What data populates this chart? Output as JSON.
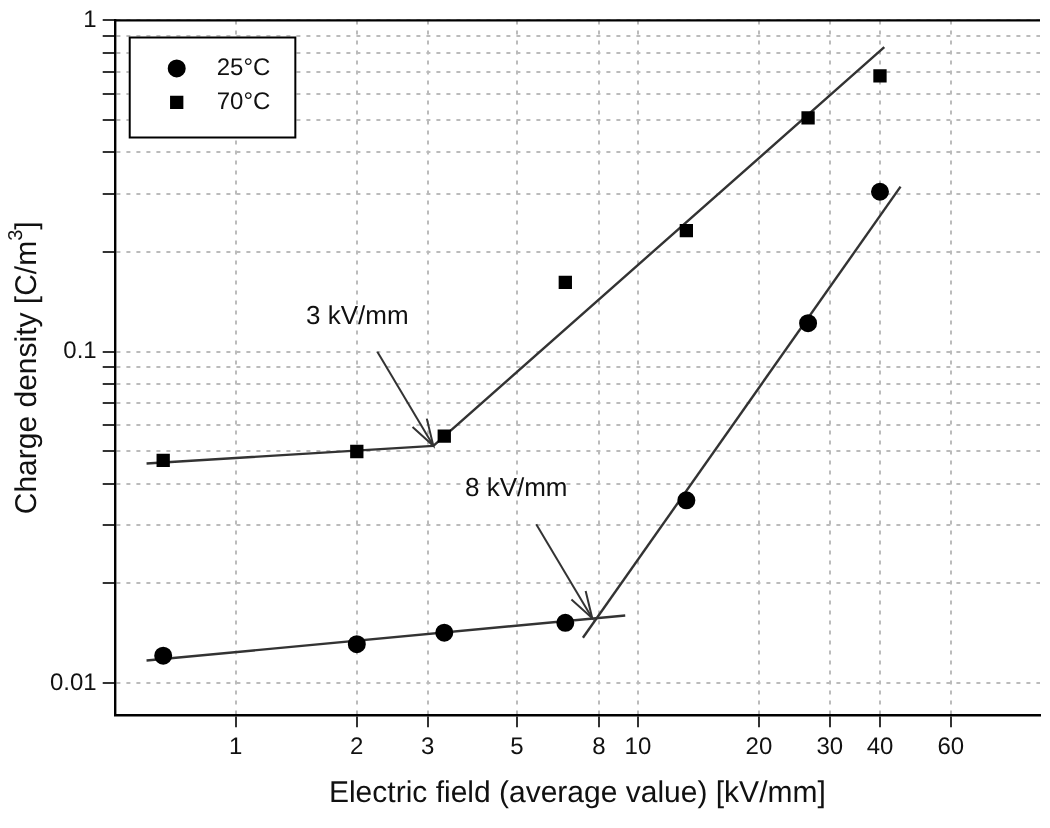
{
  "chart_data": {
    "type": "scatter",
    "xlabel": "Electric field (average value) [kV/mm]",
    "ylabel": "Charge density [C/m$^{3}$]",
    "log": "xy",
    "grid": true,
    "legend": "top left",
    "xlim": [
      0.5,
      100
    ],
    "ylim": [
      0.008,
      1
    ],
    "xticks": [
      1,
      2,
      3,
      5,
      8,
      10,
      20,
      30,
      40,
      60
    ],
    "yticks": [
      0.01,
      {
        "value": 0.02,
        "label": null
      },
      {
        "value": 0.03,
        "label": null
      },
      {
        "value": 0.04,
        "label": null
      },
      {
        "value": 0.05,
        "label": null
      },
      {
        "value": 0.06,
        "label": null
      },
      {
        "value": 0.07,
        "label": null
      },
      {
        "value": 0.08,
        "label": null
      },
      {
        "value": 0.09,
        "label": null
      },
      0.1,
      {
        "value": 0.2,
        "label": null
      },
      {
        "value": 0.3,
        "label": null
      },
      {
        "value": 0.4,
        "label": null
      },
      {
        "value": 0.5,
        "label": null
      },
      {
        "value": 0.6,
        "label": null
      },
      {
        "value": 0.7,
        "label": null
      },
      {
        "value": 0.8,
        "label": null
      },
      {
        "value": 0.9,
        "label": null
      },
      1
    ],
    "x": [
      0.66,
      2,
      3.3,
      6.6,
      13.2,
      26.5,
      40
    ],
    "series": [
      {
        "name": "25°C",
        "color": "#000000",
        "marker": "circle",
        "values": [
          0.0121,
          0.0131,
          0.0142,
          0.0152,
          0.0356,
          0.122,
          0.304
        ]
      },
      {
        "name": "70°C",
        "color": "#000000",
        "marker": "square",
        "values": [
          0.047,
          0.05,
          0.0556,
          0.162,
          0.232,
          0.508,
          0.68
        ]
      },
      {
        "type": "line",
        "color": "#333333",
        "marker": "none",
        "x": [
          0.6,
          3.1,
          41
        ],
        "values": [
          0.046,
          0.052,
          0.83
        ]
      },
      {
        "type": "line",
        "color": "#333333",
        "marker": "none",
        "x": [
          0.6,
          9.3
        ],
        "values": [
          0.0117,
          0.016
        ]
      },
      {
        "type": "line",
        "color": "#333333",
        "marker": "none",
        "x": [
          7.3,
          45
        ],
        "values": [
          0.0137,
          0.315
        ]
      }
    ],
    "annotations": [
      {
        "text": "3 kV/mm",
        "x": 3.1,
        "y": 0.052
      },
      {
        "text": "8 kV/mm",
        "x": 7.7,
        "y": 0.0157
      }
    ]
  }
}
